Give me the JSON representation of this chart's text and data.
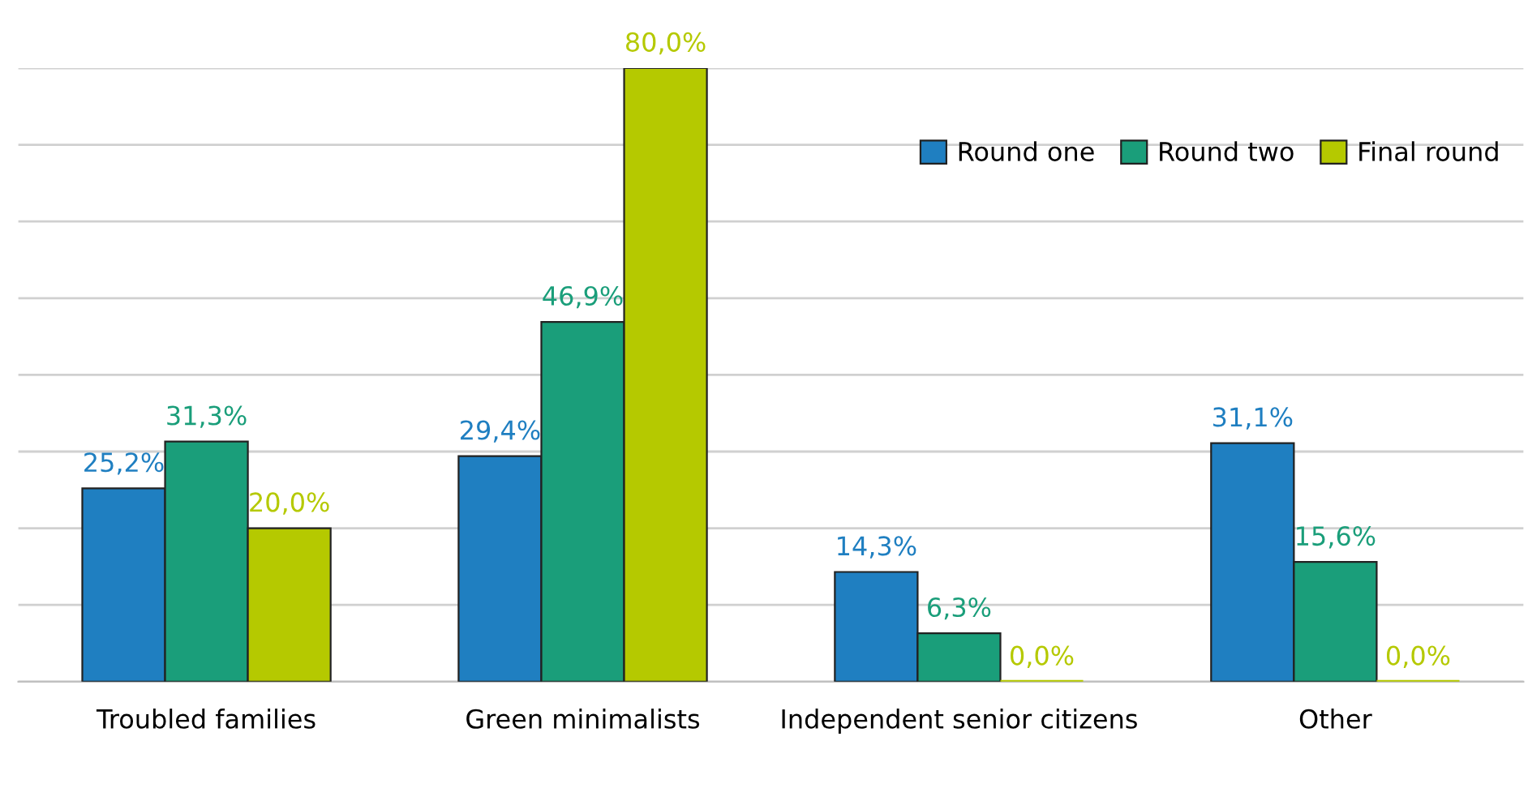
{
  "chart_data": {
    "type": "bar",
    "categories": [
      "Troubled families",
      "Green minimalists",
      "Independent senior citizens",
      "Other"
    ],
    "series": [
      {
        "name": "Round one",
        "color": "#1f7fc1",
        "values": [
          25.2,
          29.4,
          14.3,
          31.1
        ],
        "value_labels": [
          "25,2%",
          "29,4%",
          "14,3%",
          "31,1%"
        ]
      },
      {
        "name": "Round two",
        "color": "#1a9e7a",
        "values": [
          31.3,
          46.9,
          6.3,
          15.6
        ],
        "value_labels": [
          "31,3%",
          "46,9%",
          "6,3%",
          "15,6%"
        ]
      },
      {
        "name": "Final round",
        "color": "#b5c900",
        "values": [
          20.0,
          80.0,
          0.0,
          0.0
        ],
        "value_labels": [
          "20,0%",
          "80,0%",
          "0,0%",
          "0,0%"
        ]
      }
    ],
    "ylim": [
      0,
      80
    ],
    "yticks": [
      {
        "value": 0,
        "label": null
      },
      {
        "value": 10,
        "label": null
      },
      {
        "value": 20,
        "label": null
      },
      {
        "value": 30,
        "label": null
      },
      {
        "value": 40,
        "label": null
      },
      {
        "value": 50,
        "label": null
      },
      {
        "value": 60,
        "label": null
      },
      {
        "value": 70,
        "label": null
      },
      {
        "value": 80,
        "label": null
      }
    ],
    "tick_labels": "x",
    "grid": "y",
    "legend": "top right"
  }
}
